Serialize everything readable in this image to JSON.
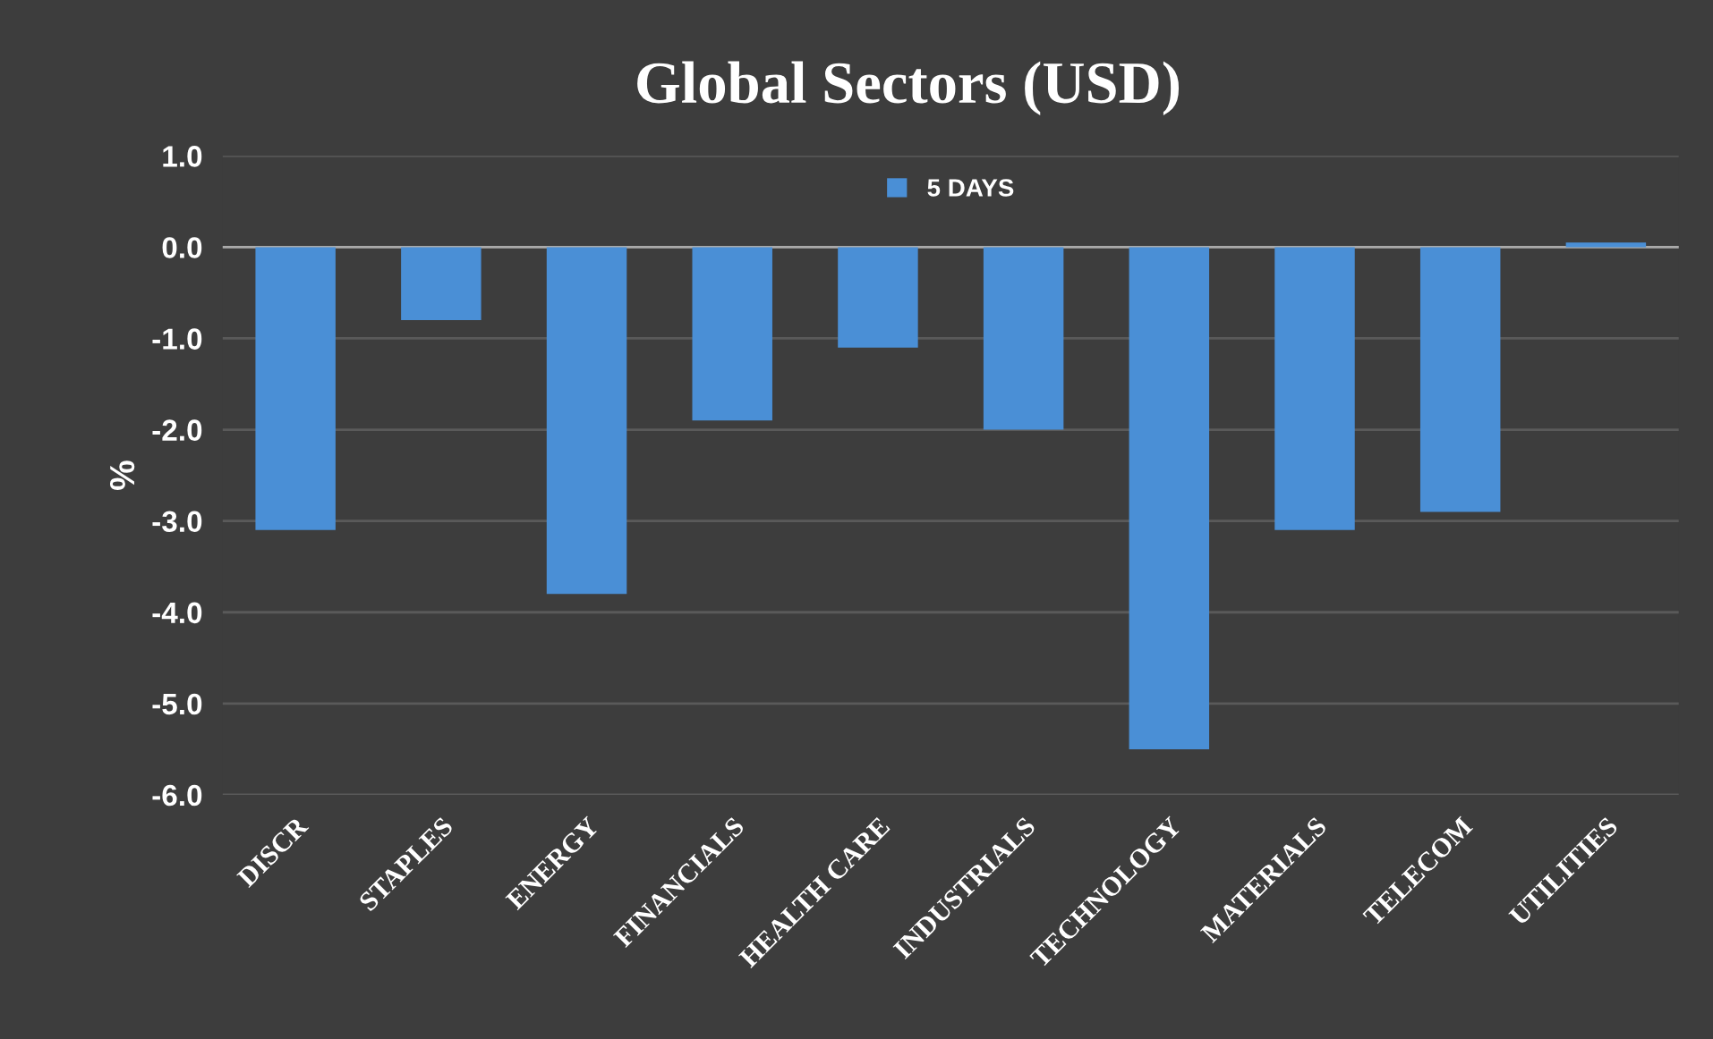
{
  "chart_data": {
    "type": "bar",
    "title": "Global Sectors (USD)",
    "ylabel": "%",
    "categories": [
      "DISCR",
      "STAPLES",
      "ENERGY",
      "FINANCIALS",
      "HEALTH CARE",
      "INDUSTRIALS",
      "TECHNOLOGY",
      "MATERIALS",
      "TELECOM",
      "UTILITIES"
    ],
    "series": [
      {
        "name": "5 DAYS",
        "color": "#4a8fd6",
        "values": [
          -3.1,
          -0.8,
          -3.8,
          -1.9,
          -1.1,
          -2.0,
          -5.5,
          -3.1,
          -2.9,
          0.05
        ]
      }
    ],
    "ylim": [
      -6.0,
      1.0
    ],
    "yticks": [
      {
        "value": 1.0,
        "label": "1.0"
      },
      {
        "value": 0.0,
        "label": "0.0"
      },
      {
        "value": -1.0,
        "label": "-1.0"
      },
      {
        "value": -2.0,
        "label": "-2.0"
      },
      {
        "value": -3.0,
        "label": "-3.0"
      },
      {
        "value": -4.0,
        "label": "-4.0"
      },
      {
        "value": -5.0,
        "label": "-5.0"
      },
      {
        "value": -6.0,
        "label": "-6.0"
      }
    ],
    "grid": "y",
    "legend": "top"
  }
}
